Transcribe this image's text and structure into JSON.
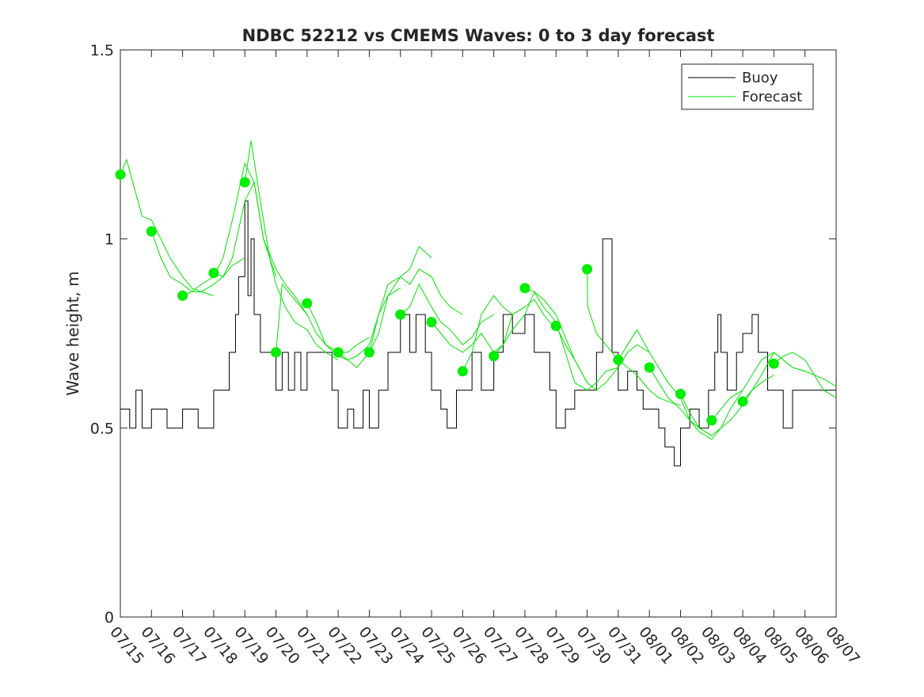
{
  "chart_data": {
    "type": "line",
    "title": "NDBC 52212 vs CMEMS Waves: 0 to 3 day forecast",
    "xlabel": "",
    "ylabel": "Wave height, m",
    "ylim": [
      0,
      1.5
    ],
    "yticks": [
      0,
      0.5,
      1,
      1.5
    ],
    "ytick_labels": [
      "0",
      "0.5",
      "1",
      "1.5"
    ],
    "xlim": [
      "07/15",
      "08/07"
    ],
    "xtick_labels": [
      "07/15",
      "07/16",
      "07/17",
      "07/18",
      "07/19",
      "07/20",
      "07/21",
      "07/22",
      "07/23",
      "07/24",
      "07/25",
      "07/26",
      "07/27",
      "07/28",
      "07/29",
      "07/30",
      "07/31",
      "08/01",
      "08/02",
      "08/03",
      "08/04",
      "08/05",
      "08/06",
      "08/07"
    ],
    "legend": {
      "position": "top-right",
      "entries": [
        {
          "label": "Buoy",
          "color": "#000000"
        },
        {
          "label": "Forecast",
          "color": "#00e600"
        }
      ]
    },
    "colors": {
      "buoy": "#000000",
      "forecast": "#00e600",
      "marker": "#00ee00"
    },
    "series": [
      {
        "name": "Buoy",
        "x": [
          0,
          0.3,
          0.5,
          0.7,
          1.0,
          1.5,
          2.0,
          2.5,
          3.0,
          3.3,
          3.5,
          3.7,
          3.8,
          4.0,
          4.1,
          4.2,
          4.3,
          4.5,
          4.7,
          5.0,
          5.2,
          5.4,
          5.6,
          5.8,
          6.0,
          6.3,
          6.6,
          6.8,
          7.0,
          7.3,
          7.5,
          7.8,
          8.0,
          8.3,
          8.6,
          9.0,
          9.3,
          9.5,
          9.8,
          10.0,
          10.3,
          10.5,
          10.8,
          11.0,
          11.3,
          11.6,
          12.0,
          12.3,
          12.6,
          13.0,
          13.3,
          13.6,
          13.8,
          14.0,
          14.3,
          14.6,
          15.0,
          15.3,
          15.5,
          15.8,
          16.0,
          16.3,
          16.6,
          16.8,
          17.0,
          17.3,
          17.5,
          17.8,
          18.0,
          18.3,
          18.6,
          18.9,
          19.0,
          19.1,
          19.2,
          19.3,
          19.5,
          19.8,
          20.0,
          20.3,
          20.5,
          20.8,
          21.0,
          21.3,
          21.6,
          21.8,
          22.0,
          22.3,
          22.6,
          23.0
        ],
        "values": [
          0.55,
          0.5,
          0.6,
          0.5,
          0.55,
          0.5,
          0.55,
          0.5,
          0.6,
          0.6,
          0.7,
          0.8,
          0.9,
          1.1,
          0.85,
          1.0,
          0.8,
          0.7,
          0.7,
          0.6,
          0.7,
          0.6,
          0.7,
          0.6,
          0.7,
          0.7,
          0.7,
          0.6,
          0.5,
          0.55,
          0.5,
          0.6,
          0.5,
          0.6,
          0.7,
          0.8,
          0.7,
          0.8,
          0.7,
          0.6,
          0.55,
          0.5,
          0.6,
          0.6,
          0.7,
          0.6,
          0.7,
          0.8,
          0.75,
          0.8,
          0.7,
          0.7,
          0.6,
          0.5,
          0.55,
          0.6,
          0.6,
          0.7,
          1.0,
          0.7,
          0.6,
          0.65,
          0.6,
          0.55,
          0.55,
          0.5,
          0.45,
          0.4,
          0.5,
          0.55,
          0.5,
          0.6,
          0.6,
          0.7,
          0.8,
          0.7,
          0.6,
          0.7,
          0.75,
          0.8,
          0.7,
          0.6,
          0.6,
          0.5,
          0.6,
          0.6,
          0.6,
          0.6,
          0.6,
          0.6
        ]
      },
      {
        "name": "Forecast",
        "runs": [
          {
            "start": 0,
            "x": [
              0,
              0.2,
              0.4,
              0.7,
              1.0,
              1.3,
              1.6,
              2.0,
              2.3,
              2.6,
              3.0
            ],
            "values": [
              1.17,
              1.21,
              1.15,
              1.06,
              1.05,
              1.0,
              0.95,
              0.9,
              0.87,
              0.86,
              0.85
            ]
          },
          {
            "start": 1,
            "x": [
              1,
              1.3,
              1.6,
              2.0,
              2.3,
              2.6,
              3.0,
              3.3,
              3.6,
              4.0
            ],
            "values": [
              1.02,
              0.95,
              0.9,
              0.88,
              0.86,
              0.86,
              0.88,
              0.9,
              0.93,
              0.95
            ]
          },
          {
            "start": 2,
            "x": [
              2,
              2.3,
              2.6,
              3.0,
              3.3,
              3.6,
              4.0,
              4.3,
              4.6,
              5.0
            ],
            "values": [
              0.85,
              0.86,
              0.88,
              0.9,
              0.95,
              1.05,
              1.2,
              1.15,
              1.0,
              0.9
            ]
          },
          {
            "start": 3,
            "x": [
              3,
              3.3,
              3.6,
              4.0,
              4.3,
              4.6,
              5.0,
              5.3,
              5.6,
              6.0
            ],
            "values": [
              0.91,
              0.9,
              0.95,
              1.1,
              1.15,
              1.0,
              0.92,
              0.88,
              0.85,
              0.8
            ]
          },
          {
            "start": 4,
            "x": [
              4,
              4.2,
              4.5,
              4.8,
              5.0,
              5.3,
              5.6,
              6.0,
              6.3,
              6.6,
              7.0
            ],
            "values": [
              1.15,
              1.26,
              1.1,
              0.95,
              0.88,
              0.82,
              0.78,
              0.76,
              0.72,
              0.7,
              0.68
            ]
          },
          {
            "start": 5,
            "x": [
              5,
              5.2,
              5.5,
              5.8,
              6.0,
              6.3,
              6.6,
              7.0,
              7.3,
              7.6,
              8.0
            ],
            "values": [
              0.7,
              0.88,
              0.85,
              0.82,
              0.8,
              0.75,
              0.72,
              0.7,
              0.7,
              0.72,
              0.74
            ]
          },
          {
            "start": 6,
            "x": [
              6,
              6.3,
              6.6,
              7.0,
              7.3,
              7.6,
              8.0,
              8.3,
              8.6,
              9.0
            ],
            "values": [
              0.83,
              0.78,
              0.72,
              0.69,
              0.68,
              0.69,
              0.72,
              0.8,
              0.85,
              0.87
            ]
          },
          {
            "start": 7,
            "x": [
              7,
              7.3,
              7.6,
              8.0,
              8.3,
              8.6,
              9.0,
              9.3,
              9.6,
              10.0
            ],
            "values": [
              0.7,
              0.68,
              0.66,
              0.7,
              0.8,
              0.88,
              0.9,
              0.92,
              0.98,
              0.95
            ]
          },
          {
            "start": 8,
            "x": [
              8,
              8.3,
              8.6,
              9.0,
              9.3,
              9.6,
              10.0,
              10.3,
              10.6,
              11.0
            ],
            "values": [
              0.7,
              0.75,
              0.85,
              0.9,
              0.88,
              0.92,
              0.9,
              0.85,
              0.82,
              0.8
            ]
          },
          {
            "start": 9,
            "x": [
              9,
              9.3,
              9.6,
              10.0,
              10.3,
              10.6,
              11.0,
              11.3,
              11.6,
              12.0
            ],
            "values": [
              0.8,
              0.82,
              0.88,
              0.82,
              0.78,
              0.76,
              0.72,
              0.74,
              0.78,
              0.8
            ]
          },
          {
            "start": 10,
            "x": [
              10,
              10.3,
              10.6,
              11.0,
              11.3,
              11.6,
              12.0,
              12.3,
              12.6,
              13.0
            ],
            "values": [
              0.78,
              0.75,
              0.72,
              0.7,
              0.72,
              0.75,
              0.7,
              0.72,
              0.8,
              0.82
            ]
          },
          {
            "start": 11,
            "x": [
              11,
              11.3,
              11.6,
              12.0,
              12.3,
              12.6,
              13.0,
              13.3,
              13.6,
              14.0
            ],
            "values": [
              0.65,
              0.7,
              0.8,
              0.85,
              0.82,
              0.8,
              0.82,
              0.84,
              0.8,
              0.76
            ]
          },
          {
            "start": 12,
            "x": [
              12,
              12.3,
              12.6,
              13.0,
              13.3,
              13.6,
              14.0,
              14.3,
              14.6,
              15.0
            ],
            "values": [
              0.69,
              0.72,
              0.76,
              0.8,
              0.86,
              0.84,
              0.8,
              0.74,
              0.68,
              0.62
            ]
          },
          {
            "start": 13,
            "x": [
              13,
              13.3,
              13.6,
              14.0,
              14.3,
              14.6,
              15.0,
              15.3,
              15.6,
              16.0
            ],
            "values": [
              0.87,
              0.86,
              0.82,
              0.78,
              0.7,
              0.62,
              0.6,
              0.62,
              0.65,
              0.66
            ]
          },
          {
            "start": 14,
            "x": [
              14,
              14.3,
              14.6,
              15.0,
              15.3,
              15.6,
              16.0,
              16.3,
              16.6,
              17.0
            ],
            "values": [
              0.77,
              0.72,
              0.68,
              0.62,
              0.6,
              0.62,
              0.66,
              0.7,
              0.72,
              0.7
            ]
          },
          {
            "start": 15,
            "x": [
              15,
              15.02,
              15.3,
              15.6,
              16.0,
              16.3,
              16.6,
              17.0,
              17.3,
              17.6,
              18.0
            ],
            "values": [
              0.92,
              0.82,
              0.75,
              0.72,
              0.68,
              0.66,
              0.64,
              0.6,
              0.58,
              0.57,
              0.56
            ]
          },
          {
            "start": 16,
            "x": [
              16,
              16.3,
              16.6,
              17.0,
              17.3,
              17.6,
              18.0,
              18.3,
              18.6,
              19.0
            ],
            "values": [
              0.68,
              0.72,
              0.76,
              0.7,
              0.66,
              0.62,
              0.58,
              0.52,
              0.5,
              0.48
            ]
          },
          {
            "start": 17,
            "x": [
              17,
              17.3,
              17.6,
              18.0,
              18.3,
              18.6,
              19.0,
              19.3,
              19.6,
              20.0
            ],
            "values": [
              0.66,
              0.62,
              0.58,
              0.55,
              0.52,
              0.49,
              0.47,
              0.5,
              0.55,
              0.6
            ]
          },
          {
            "start": 18,
            "x": [
              18,
              18.3,
              18.6,
              19.0,
              19.3,
              19.6,
              20.0,
              20.3,
              20.6,
              21.0
            ],
            "values": [
              0.59,
              0.54,
              0.5,
              0.48,
              0.5,
              0.52,
              0.56,
              0.6,
              0.62,
              0.64
            ]
          },
          {
            "start": 19,
            "x": [
              19,
              19.3,
              19.6,
              20.0,
              20.3,
              20.6,
              21.0,
              21.3,
              21.6,
              22.0
            ],
            "values": [
              0.52,
              0.55,
              0.58,
              0.6,
              0.64,
              0.68,
              0.7,
              0.68,
              0.66,
              0.65
            ]
          },
          {
            "start": 20,
            "x": [
              20,
              20.3,
              20.6,
              21.0,
              21.3,
              21.6,
              22.0,
              22.3,
              22.6,
              23.0
            ],
            "values": [
              0.57,
              0.6,
              0.64,
              0.7,
              0.68,
              0.66,
              0.65,
              0.64,
              0.63,
              0.61
            ]
          },
          {
            "start": 21,
            "x": [
              21,
              21.3,
              21.6,
              22.0,
              22.3,
              22.6,
              23.0
            ],
            "values": [
              0.67,
              0.69,
              0.7,
              0.68,
              0.64,
              0.6,
              0.58
            ]
          }
        ],
        "markers": {
          "x": [
            0,
            1,
            2,
            3,
            4,
            5,
            6,
            7,
            8,
            9,
            10,
            11,
            12,
            13,
            14,
            15,
            16,
            17,
            18,
            19,
            20,
            21
          ],
          "values": [
            1.17,
            1.02,
            0.85,
            0.91,
            1.15,
            0.7,
            0.83,
            0.7,
            0.7,
            0.8,
            0.78,
            0.65,
            0.69,
            0.87,
            0.77,
            0.92,
            0.68,
            0.66,
            0.59,
            0.52,
            0.57,
            0.67
          ]
        }
      }
    ]
  }
}
